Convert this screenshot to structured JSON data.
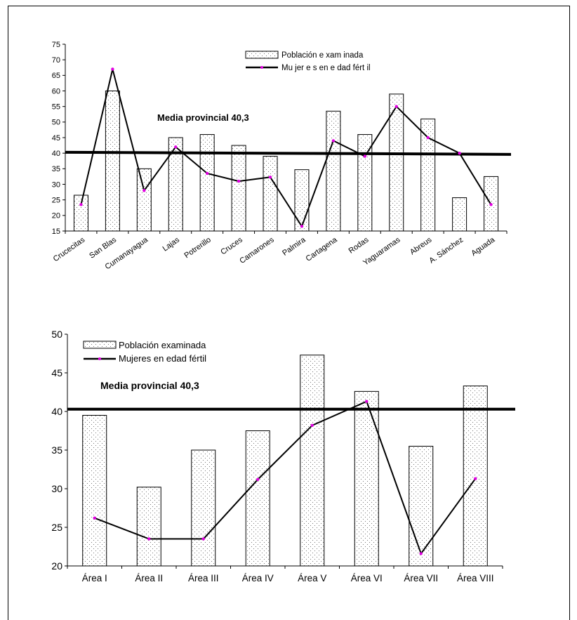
{
  "chart_data": [
    {
      "type": "bar",
      "title": "",
      "categories": [
        "Crucecitas",
        "San Blas",
        "Cumanayagua",
        "Lajas",
        "Potrerillo",
        "Cruces",
        "Camarones",
        "Palmira",
        "Cartagena",
        "Rodas",
        "Yaguaramas",
        "Abreus",
        "A. Sánchez",
        "Aguada"
      ],
      "series": [
        {
          "name": "Población e xam inada",
          "kind": "bar",
          "values": [
            26.5,
            60,
            35,
            45,
            46,
            42.5,
            39,
            34.7,
            53.5,
            46,
            59,
            51,
            25.7,
            32.5
          ]
        },
        {
          "name": "Mu jer e s en e dad fért il",
          "kind": "line",
          "values": [
            23.5,
            67,
            28,
            42,
            33.5,
            31,
            32.3,
            16.5,
            44,
            39,
            55,
            45,
            40,
            23.5
          ]
        }
      ],
      "reference_line": {
        "value": 40.3,
        "label": "Media provincial 40,3"
      },
      "ylim": [
        15,
        75
      ],
      "yticks": [
        "15",
        "20",
        "25",
        "30",
        "35",
        "40",
        "45",
        "50",
        "55",
        "60",
        "65",
        "70",
        "75"
      ],
      "xlabel": "",
      "ylabel": "",
      "legend_position": "top-right",
      "colors": {
        "bar_fill": "#ffffff",
        "bar_dots": "#555555",
        "line": "#000000",
        "marker": "#e000e0",
        "reference": "#000000"
      }
    },
    {
      "type": "bar",
      "title": "",
      "categories": [
        "Área I",
        "Área II",
        "Área III",
        "Área IV",
        "Área V",
        "Área VI",
        "Área VII",
        "Área VIII"
      ],
      "series": [
        {
          "name": "Población examinada",
          "kind": "bar",
          "values": [
            39.5,
            30.2,
            35,
            37.5,
            47.3,
            42.6,
            35.5,
            43.3
          ]
        },
        {
          "name": "Mujeres en edad fértil",
          "kind": "line",
          "values": [
            26.2,
            23.5,
            23.5,
            31.2,
            38.2,
            41.3,
            21.6,
            31.3
          ]
        }
      ],
      "reference_line": {
        "value": 40.3,
        "label": "Media provincial 40,3"
      },
      "ylim": [
        20,
        50
      ],
      "yticks": [
        "20",
        "25",
        "30",
        "35",
        "40",
        "45",
        "50"
      ],
      "xlabel": "",
      "ylabel": "",
      "legend_position": "top-left",
      "colors": {
        "bar_fill": "#ffffff",
        "bar_dots": "#555555",
        "line": "#000000",
        "marker": "#e000e0",
        "reference": "#000000"
      }
    }
  ]
}
